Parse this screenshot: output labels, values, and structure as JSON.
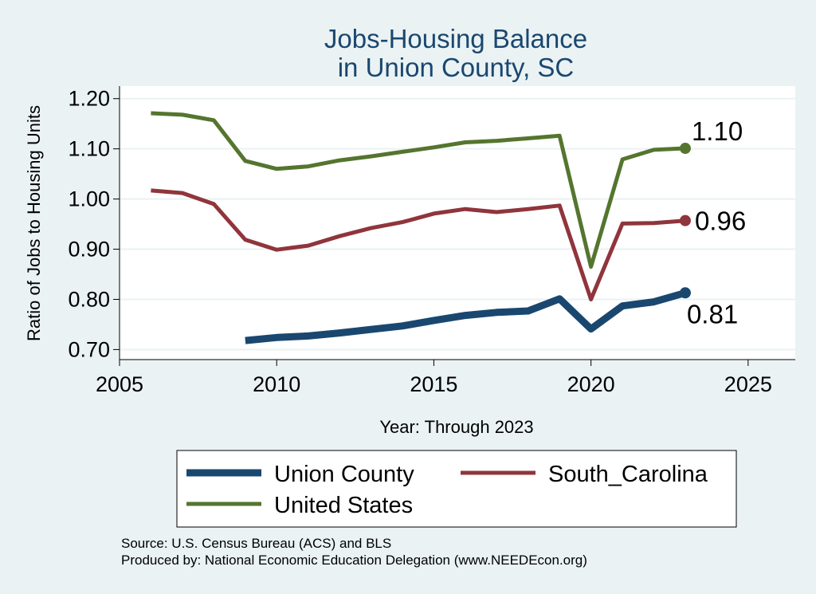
{
  "chart_data": {
    "type": "line",
    "title": [
      "Jobs-Housing Balance",
      "in Union County, SC"
    ],
    "xlabel": "Year: Through 2023",
    "ylabel": "Ratio of Jobs to Housing Units",
    "xlim": [
      2005,
      2026.5
    ],
    "ylim": [
      0.68,
      1.225
    ],
    "xticks": [
      2005,
      2010,
      2015,
      2020,
      2025
    ],
    "yticks": [
      0.7,
      0.8,
      0.9,
      1.0,
      1.1,
      1.2
    ],
    "ytick_labels": [
      "0.70",
      "0.80",
      "0.90",
      "1.00",
      "1.10",
      "1.20"
    ],
    "grid": "horizontal",
    "series": [
      {
        "name": "Union County",
        "color": "#1a476f",
        "line_weight": "thick",
        "x": [
          2009,
          2010,
          2011,
          2012,
          2013,
          2014,
          2015,
          2016,
          2017,
          2018,
          2019,
          2020,
          2021,
          2022,
          2023
        ],
        "values": [
          0.718,
          0.724,
          0.727,
          0.733,
          0.74,
          0.747,
          0.758,
          0.768,
          0.774,
          0.777,
          0.801,
          0.741,
          0.787,
          0.795,
          0.813
        ],
        "end_label": "0.81"
      },
      {
        "name": "South_Carolina",
        "color": "#90353b",
        "line_weight": "medium",
        "x": [
          2006,
          2007,
          2008,
          2009,
          2010,
          2011,
          2012,
          2013,
          2014,
          2015,
          2016,
          2017,
          2018,
          2019,
          2020,
          2021,
          2022,
          2023
        ],
        "values": [
          1.017,
          1.012,
          0.99,
          0.919,
          0.899,
          0.907,
          0.926,
          0.942,
          0.954,
          0.971,
          0.98,
          0.974,
          0.98,
          0.987,
          0.8,
          0.951,
          0.952,
          0.957
        ],
        "end_label": "0.96"
      },
      {
        "name": "United States",
        "color": "#55752f",
        "line_weight": "medium",
        "x": [
          2006,
          2007,
          2008,
          2009,
          2010,
          2011,
          2012,
          2013,
          2014,
          2015,
          2016,
          2017,
          2018,
          2019,
          2020,
          2021,
          2022,
          2023
        ],
        "values": [
          1.171,
          1.168,
          1.157,
          1.076,
          1.06,
          1.065,
          1.077,
          1.085,
          1.094,
          1.103,
          1.113,
          1.116,
          1.121,
          1.126,
          0.865,
          1.079,
          1.098,
          1.101
        ],
        "end_label": "1.10"
      }
    ],
    "legend": {
      "placement": "bottom",
      "entries": [
        "Union County",
        "South_Carolina",
        "United States"
      ]
    },
    "note": [
      "Source: U.S. Census Bureau (ACS) and BLS",
      "Produced by: National Economic Education Delegation (www.NEEDEcon.org)"
    ]
  }
}
